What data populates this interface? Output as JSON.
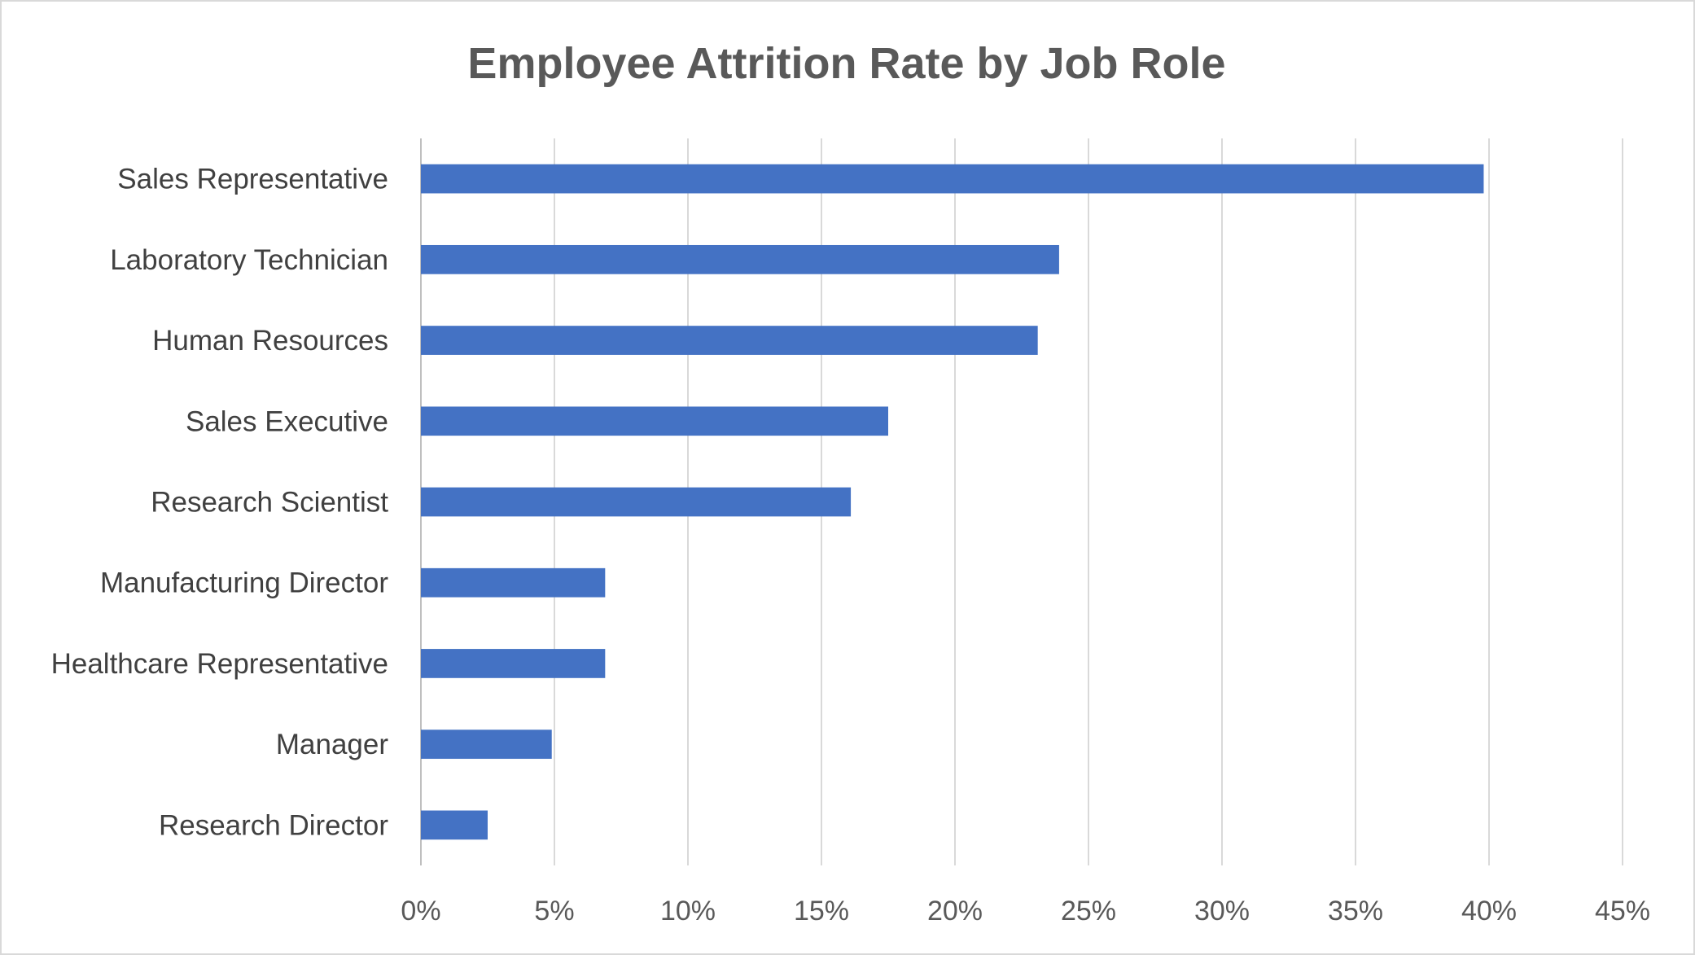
{
  "chart_data": {
    "type": "bar",
    "orientation": "horizontal",
    "title": "Employee Attrition Rate by Job Role",
    "xlabel": "",
    "ylabel": "",
    "categories": [
      "Sales Representative",
      "Laboratory Technician",
      "Human Resources",
      "Sales Executive",
      "Research Scientist",
      "Manufacturing Director",
      "Healthcare Representative",
      "Manager",
      "Research Director"
    ],
    "values": [
      39.8,
      23.9,
      23.1,
      17.5,
      16.1,
      6.9,
      6.9,
      4.9,
      2.5
    ],
    "value_unit": "%",
    "xlim": [
      0,
      45
    ],
    "x_ticks": [
      "0%",
      "5%",
      "10%",
      "15%",
      "20%",
      "25%",
      "30%",
      "35%",
      "40%",
      "45%"
    ],
    "grid": "vertical",
    "legend": "none",
    "bar_color": "#4472c4",
    "grid_color": "#d9d9d9",
    "axis_color": "#bfbfbf"
  }
}
